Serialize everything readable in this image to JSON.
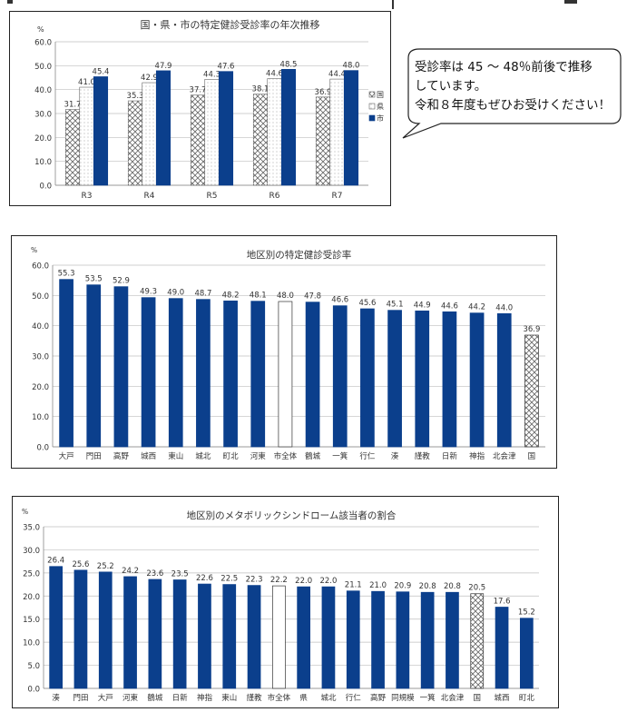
{
  "note_bubble": {
    "line1": "受診率は 45 ～ 48％前後で推移",
    "line2": "しています。",
    "line3": "令和８年度もぜひお受けください！"
  },
  "colors": {
    "city": "#0b3f8c",
    "city_total": "#ffffff",
    "national_hatch": "#666666",
    "prefecture_fill": "#ffffff",
    "grid": "#bfbfbf"
  },
  "chart_data": [
    {
      "type": "bar",
      "title": "国・県・市の特定健診受診率の年次推移",
      "unit_label": "%",
      "categories": [
        "R3",
        "R4",
        "R5",
        "R6",
        "R7"
      ],
      "series": [
        {
          "name": "国",
          "values": [
            31.7,
            35.3,
            37.7,
            38.1,
            36.9
          ],
          "pattern": "crosshatch"
        },
        {
          "name": "県",
          "values": [
            41.0,
            42.9,
            44.3,
            44.6,
            44.4
          ],
          "pattern": "dots"
        },
        {
          "name": "市",
          "values": [
            45.4,
            47.9,
            47.6,
            48.5,
            48.0
          ],
          "pattern": "solid"
        }
      ],
      "ylim": [
        0,
        60
      ],
      "yticks": [
        "0.0",
        "10.0",
        "20.0",
        "30.0",
        "40.0",
        "50.0",
        "60.0"
      ],
      "grid": true,
      "legend": "right"
    },
    {
      "type": "bar",
      "title": "地区別の特定健診受診率",
      "unit_label": "%",
      "categories": [
        "大戸",
        "門田",
        "高野",
        "城西",
        "東山",
        "城北",
        "町北",
        "河東",
        "市全体",
        "鶴城",
        "一箕",
        "行仁",
        "湊",
        "謹教",
        "日新",
        "神指",
        "北会津",
        "国"
      ],
      "values": [
        55.3,
        53.5,
        52.9,
        49.3,
        49.0,
        48.7,
        48.2,
        48.1,
        48.0,
        47.8,
        46.6,
        45.6,
        45.1,
        44.9,
        44.6,
        44.2,
        44.0,
        36.9
      ],
      "ylim": [
        0,
        60
      ],
      "yticks": [
        "0.0",
        "10.0",
        "20.0",
        "30.0",
        "40.0",
        "50.0",
        "60.0"
      ],
      "grid": true
    },
    {
      "type": "bar",
      "title": "地区別のメタボリックシンドローム該当者の割合",
      "unit_label": "%",
      "categories": [
        "湊",
        "門田",
        "大戸",
        "河東",
        "鶴城",
        "日新",
        "神指",
        "東山",
        "謹教",
        "市全体",
        "県",
        "城北",
        "行仁",
        "高野",
        "同規模",
        "一箕",
        "北会津",
        "国",
        "城西",
        "町北"
      ],
      "values": [
        26.4,
        25.6,
        25.2,
        24.2,
        23.6,
        23.5,
        22.6,
        22.5,
        22.3,
        22.2,
        22.0,
        22.0,
        21.1,
        21.0,
        20.9,
        20.8,
        20.8,
        20.5,
        17.6,
        15.2
      ],
      "ylim": [
        0,
        35
      ],
      "yticks": [
        "0.0",
        "5.0",
        "10.0",
        "15.0",
        "20.0",
        "25.0",
        "30.0",
        "35.0"
      ],
      "grid": true
    }
  ]
}
